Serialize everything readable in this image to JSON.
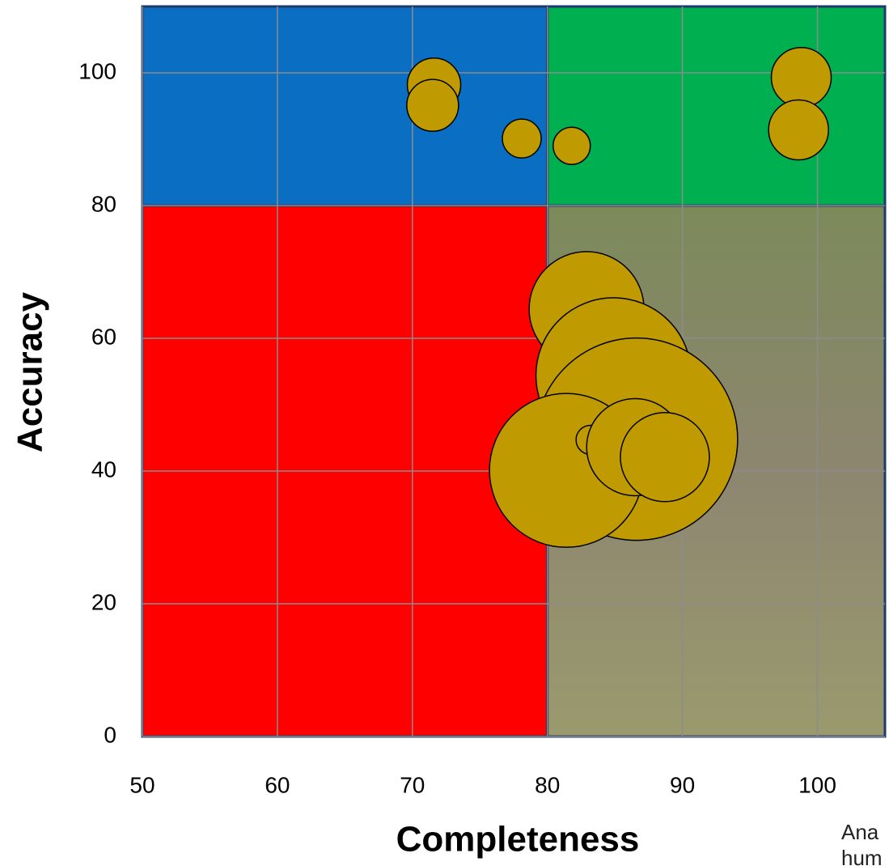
{
  "chart_data": {
    "type": "bubble",
    "x_label": "Completeness",
    "y_label": "Accuracy",
    "annotation": [
      "Ana",
      "hum"
    ],
    "x": [
      71.6,
      71.5,
      78.1,
      81.8,
      98.8,
      98.6,
      82.9,
      86.0,
      84.9,
      86.6,
      81.4,
      83.2,
      86.5,
      88.7
    ],
    "values": [
      98.2,
      95.1,
      90.1,
      89.0,
      99.3,
      91.4,
      64.4,
      61.2,
      54.4,
      44.8,
      40.1,
      44.7,
      43.6,
      42.1
    ],
    "sizes": [
      33,
      32,
      24,
      23,
      37,
      37,
      71,
      11,
      96,
      125,
      95,
      18,
      60,
      55
    ],
    "color": "#bf9a00",
    "xlim": [
      50,
      105
    ],
    "ylim": [
      0,
      110
    ],
    "xticks": [
      50,
      60,
      70,
      80,
      90,
      100
    ],
    "yticks": [
      0,
      20,
      40,
      60,
      80,
      100
    ],
    "grid": true,
    "quadrant_x": 80,
    "quadrant_y": 80,
    "quadrant_colors": [
      "#0a6fc2",
      "#00b050",
      "#ff0000",
      "#8a8a5c"
    ]
  }
}
